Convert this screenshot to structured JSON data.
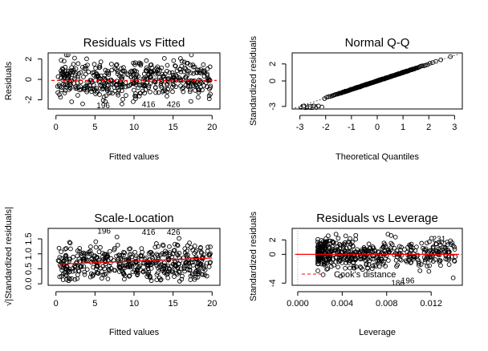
{
  "chart_data": [
    {
      "type": "scatter",
      "title": "Residuals vs Fitted",
      "xlabel": "Fitted values",
      "ylabel": "Residuals",
      "xlim": [
        -1,
        21
      ],
      "ylim": [
        -2.9,
        2.6
      ],
      "xticks": [
        0,
        5,
        10,
        15,
        20
      ],
      "yticks": [
        -2,
        0,
        2
      ],
      "annotations": [
        {
          "label": "196",
          "x": 5.2,
          "y": -2.5
        },
        {
          "label": "416",
          "x": 11.0,
          "y": -2.4
        },
        {
          "label": "426",
          "x": 14.2,
          "y": -2.4
        }
      ],
      "points": {
        "n": 480,
        "x_range": [
          0.2,
          19.8
        ],
        "y_range": [
          -2.5,
          2.4
        ],
        "seed": 11
      },
      "line": {
        "color": "#ff0000",
        "dashed": true,
        "y": -0.1
      }
    },
    {
      "type": "scatter",
      "title": "Normal Q-Q",
      "xlabel": "Theoretical Quantiles",
      "ylabel": "Standardized residuals",
      "xlim": [
        -3.3,
        3.3
      ],
      "ylim": [
        -3.3,
        3.3
      ],
      "xticks": [
        -3,
        -2,
        -1,
        0,
        1,
        2,
        3
      ],
      "yticks": [
        -3,
        0,
        2
      ],
      "annotations": [
        {
          "label": "416",
          "x": -3.05,
          "y": -3.0
        },
        {
          "label": "426",
          "x": -2.8,
          "y": -3.0
        }
      ],
      "points": {
        "n": 220,
        "x_range": [
          -3.1,
          3.1
        ],
        "seed": 7
      }
    },
    {
      "type": "scatter",
      "title": "Scale-Location",
      "xlabel": "Fitted values",
      "ylabel": "√|Standardized residuals|",
      "xlim": [
        -1,
        21
      ],
      "ylim": [
        -0.05,
        1.85
      ],
      "xticks": [
        0,
        5,
        10,
        15,
        20
      ],
      "yticks": [
        0.0,
        0.5,
        1.0,
        1.5
      ],
      "annotations": [
        {
          "label": "196",
          "x": 5.3,
          "y": 1.78
        },
        {
          "label": "416",
          "x": 11.0,
          "y": 1.74
        },
        {
          "label": "426",
          "x": 14.2,
          "y": 1.74
        }
      ],
      "points": {
        "n": 480,
        "x_range": [
          0.2,
          19.8
        ],
        "y_range": [
          0.05,
          1.78
        ],
        "seed": 23
      },
      "line": {
        "color": "#ff0000",
        "solid": true,
        "from": [
          0.5,
          0.66
        ],
        "to": [
          20,
          0.86
        ]
      }
    },
    {
      "type": "scatter",
      "title": "Residuals vs Leverage",
      "xlabel": "Leverage",
      "ylabel": "Standardized residuals",
      "xlim": [
        -0.0005,
        0.0148
      ],
      "ylim": [
        -4.3,
        3.6
      ],
      "xticks": [
        0.0,
        0.004,
        0.008,
        0.012
      ],
      "tick_labels": [
        "0.000",
        "0.004",
        "0.008",
        "0.012"
      ],
      "yticks": [
        -4,
        0,
        2
      ],
      "annotations": [
        {
          "label": "231",
          "x": 0.0121,
          "y": 2.2
        },
        {
          "label": "186",
          "x": 0.0084,
          "y": -3.9
        },
        {
          "label": "196",
          "x": 0.0093,
          "y": -3.55
        }
      ],
      "legend": {
        "text": "Cook's distance",
        "color": "#ff0000",
        "dashed": true,
        "position": "bottom-left"
      },
      "points": {
        "n": 480,
        "x_range": [
          0.0018,
          0.0142
        ],
        "y_range": [
          -3.4,
          2.8
        ],
        "seed": 41
      },
      "line": {
        "color": "#ff0000",
        "solid": true,
        "y": 0
      }
    }
  ]
}
